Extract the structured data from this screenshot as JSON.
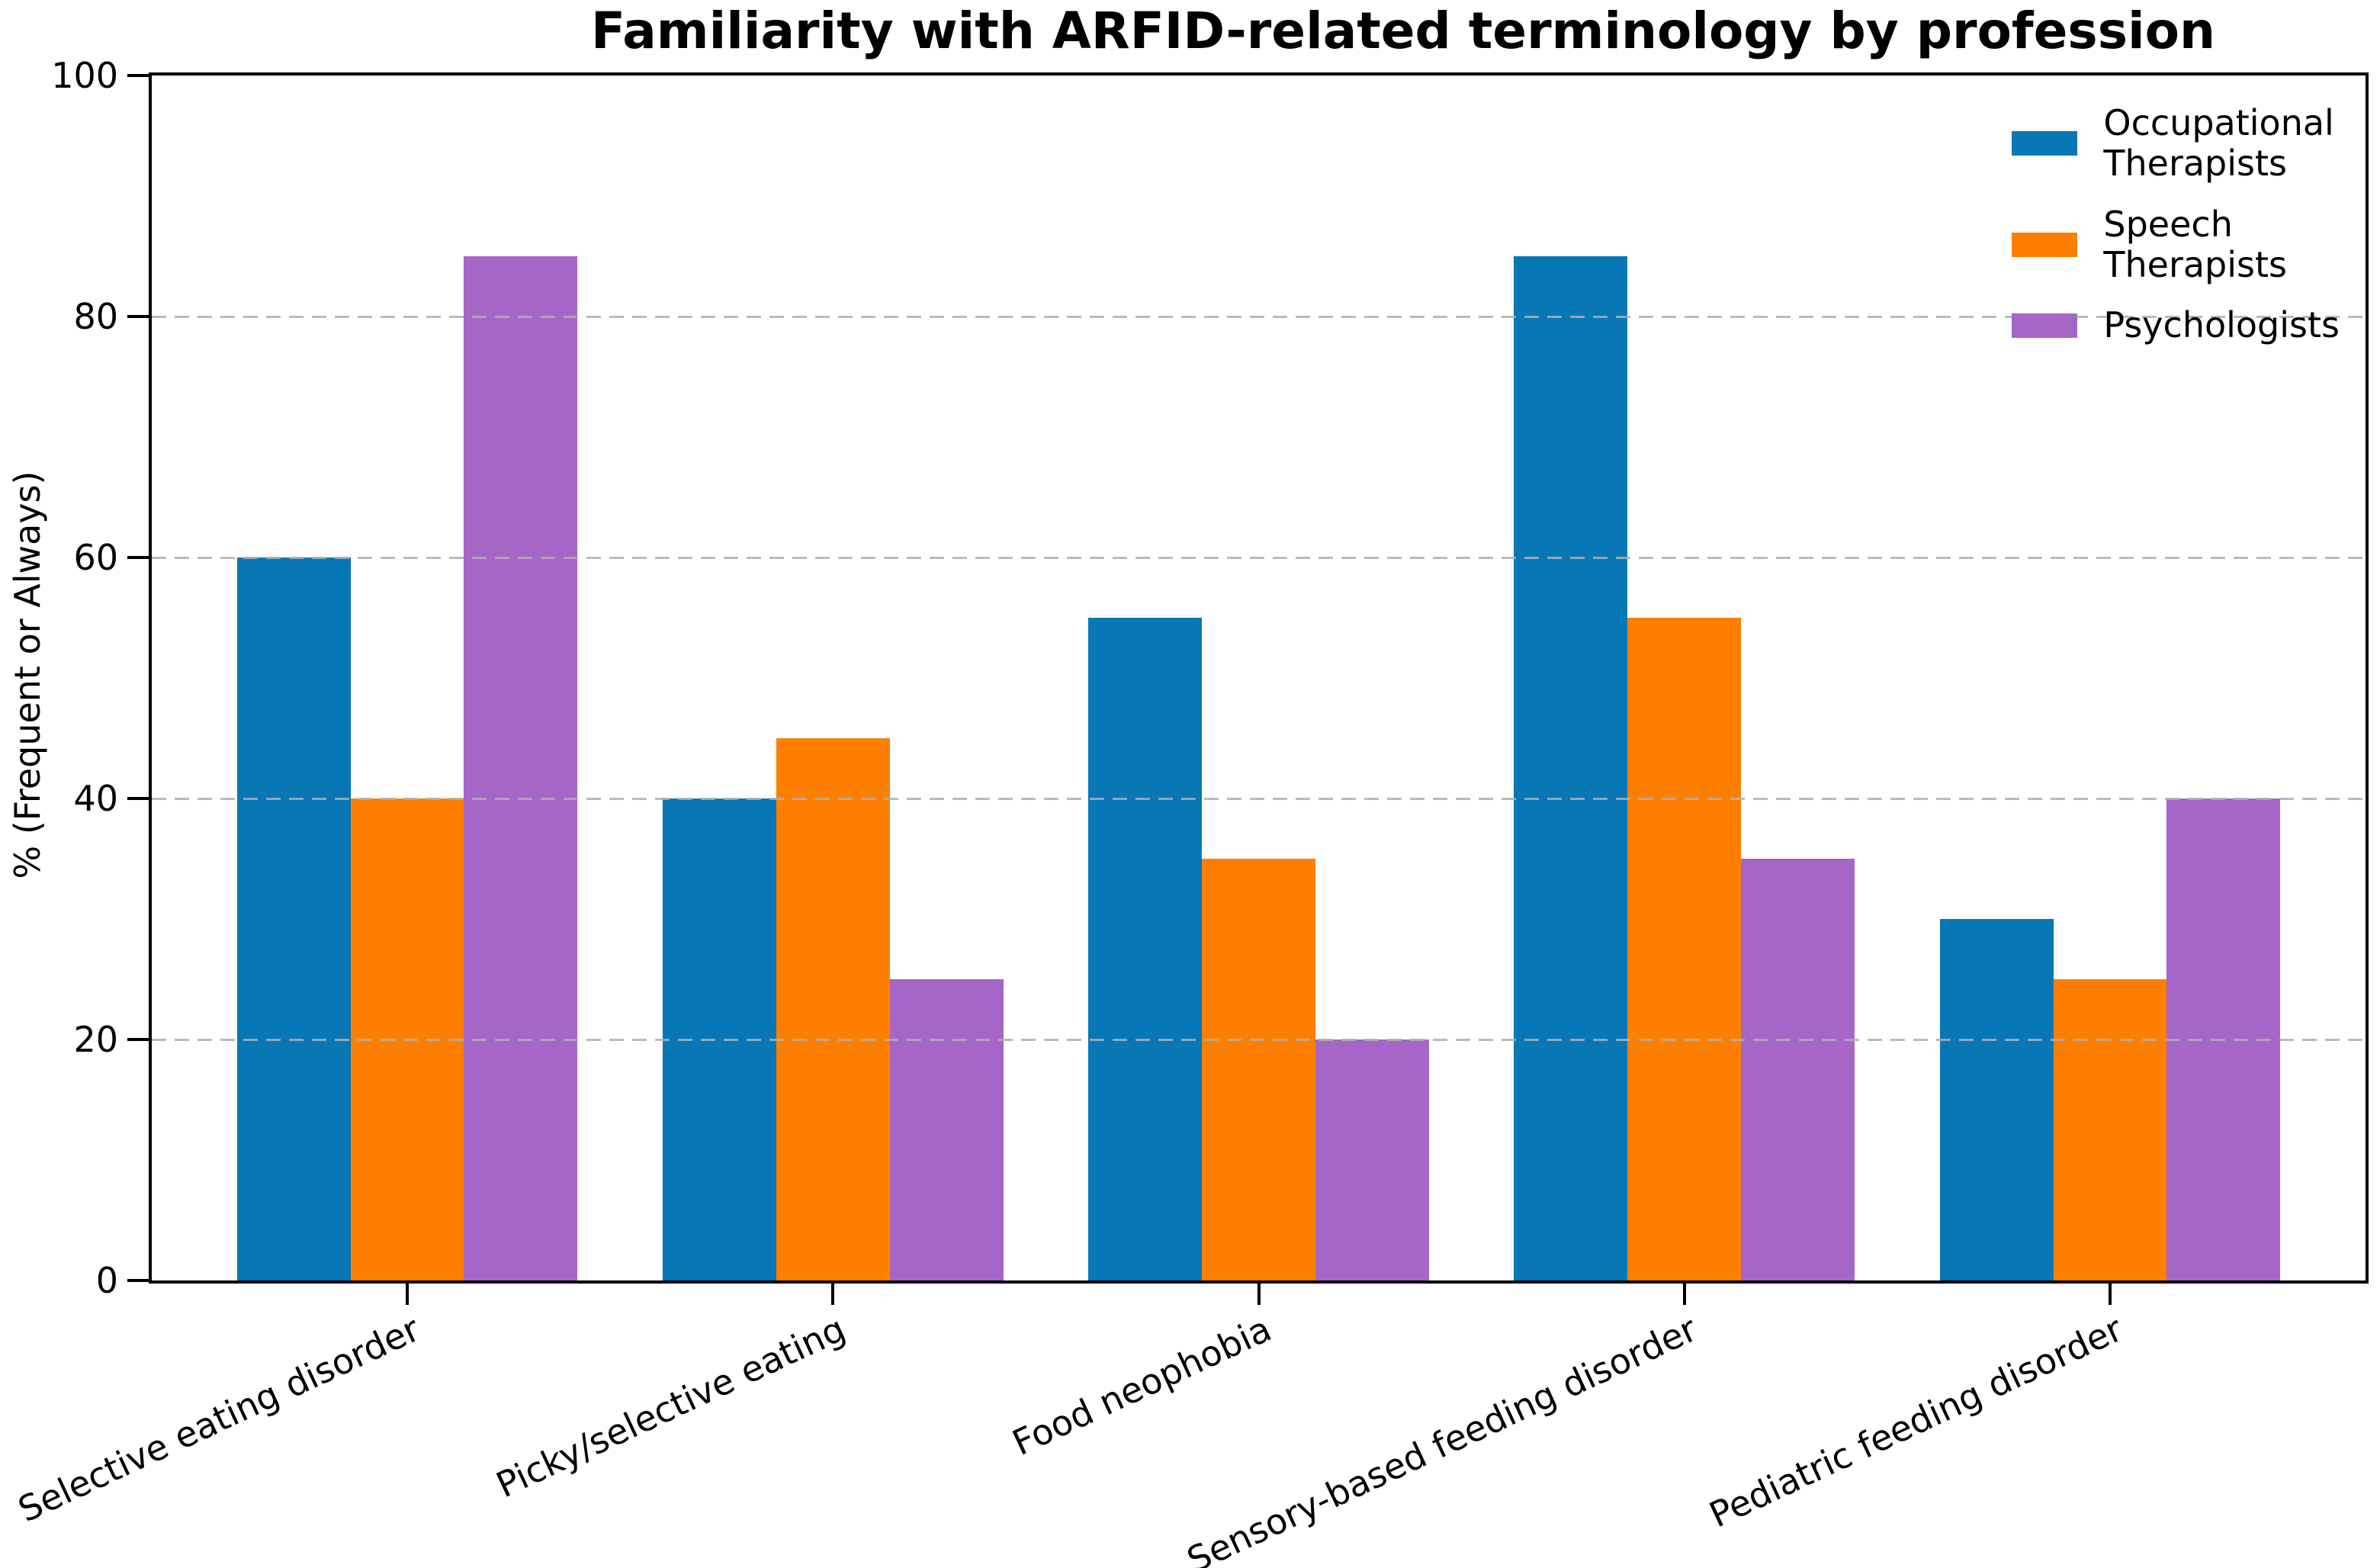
{
  "chart_data": {
    "type": "bar",
    "title": "Familiarity with ARFID-related terminology by profession",
    "xlabel": "",
    "ylabel": "% (Frequent or Always)",
    "categories": [
      "Selective eating disorder",
      "Picky/selective eating",
      "Food neophobia",
      "Sensory-based feeding disorder",
      "Pediatric feeding disorder"
    ],
    "series": [
      {
        "name": "Occupational Therapists",
        "legend_lines": [
          "Occupational",
          "Therapists"
        ],
        "color": "#0777b6",
        "values": [
          60,
          40,
          55,
          85,
          30
        ]
      },
      {
        "name": "Speech Therapists",
        "legend_lines": [
          "Speech",
          "Therapists"
        ],
        "color": "#fe7f00",
        "values": [
          40,
          45,
          35,
          55,
          25
        ]
      },
      {
        "name": "Psychologists",
        "legend_lines": [
          "Psychologists"
        ],
        "color": "#a566c7",
        "values": [
          85,
          25,
          20,
          35,
          40
        ]
      }
    ],
    "ylim": [
      0,
      100
    ],
    "yticks": [
      0,
      20,
      40,
      60,
      80,
      100
    ],
    "grid": {
      "axis": "y",
      "style": "dashed",
      "values": [
        20,
        40,
        60,
        80
      ],
      "color": "#afafaf"
    },
    "legend_position": "upper right",
    "bar_group_width": 0.8,
    "x_axis_margin": 0.6,
    "x_label_rotation_deg": 25
  }
}
